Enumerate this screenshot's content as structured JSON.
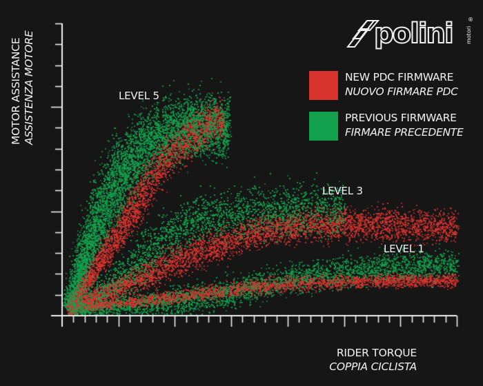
{
  "brand": {
    "logo_text": "polini",
    "logo_subtext": "motori",
    "registered_mark": "®"
  },
  "colors": {
    "background": "#161616",
    "axis": "#f2f2f2",
    "new_firmware": "#d9332e",
    "previous_firmware": "#12a04c"
  },
  "axes": {
    "y_title": "MOTOR ASSISTANCE",
    "y_title_it": "ASSISTENZA MOTORE",
    "x_title": "RIDER TORQUE",
    "x_title_it": "COPPIA CICLISTA"
  },
  "legend": [
    {
      "label": "NEW PDC FIRMWARE",
      "label_it": "NUOVO FIRMARE PDC",
      "color": "#d9332e"
    },
    {
      "label": "PREVIOUS FIRMWARE",
      "label_it": "FIRMARE PRECEDENTE",
      "color": "#12a04c"
    }
  ],
  "annotations": {
    "level5": "LEVEL 5",
    "level3": "LEVEL 3",
    "level1": "LEVEL 1"
  },
  "chart_data": {
    "type": "scatter",
    "title": "",
    "xlabel": "RIDER TORQUE / COPPIA CICLISTA",
    "ylabel": "MOTOR ASSISTANCE / ASSISTENZA MOTORE",
    "units_note": "no numeric tick labels shown; values expressed in tick units",
    "xlim": [
      0,
      35
    ],
    "ylim": [
      0,
      14
    ],
    "x_ticks": {
      "minor_every": 1,
      "major_every": 5,
      "count": 35
    },
    "y_ticks": {
      "minor_every": 1,
      "major_every": 5,
      "count": 14
    },
    "grid": false,
    "legend_position": "upper right",
    "annotations": [
      {
        "text": "LEVEL 5",
        "x": 5.1,
        "y": 10.5
      },
      {
        "text": "LEVEL 3",
        "x": 23,
        "y": 5.8
      },
      {
        "text": "LEVEL 1",
        "x": 28.3,
        "y": 3.0
      }
    ],
    "series": [
      {
        "name": "NEW PDC FIRMWARE",
        "color": "#d9332e",
        "bands": [
          {
            "level": 5,
            "path": [
              [
                0.5,
                0.3
              ],
              [
                5,
                4
              ],
              [
                9,
                7.5
              ],
              [
                13,
                9.3
              ],
              [
                14.3,
                9.5
              ]
            ],
            "width": 0.9,
            "density": 2600
          },
          {
            "level": 3,
            "path": [
              [
                0.5,
                0.3
              ],
              [
                6,
                1.6
              ],
              [
                12,
                3.1
              ],
              [
                17,
                4.0
              ],
              [
                22,
                4.4
              ],
              [
                28,
                4.4
              ],
              [
                35,
                4.3
              ]
            ],
            "width": 0.75,
            "density": 4200
          },
          {
            "level": 1,
            "path": [
              [
                2,
                0.4
              ],
              [
                8,
                0.8
              ],
              [
                14,
                1.2
              ],
              [
                20,
                1.6
              ],
              [
                26,
                1.7
              ],
              [
                35,
                1.7
              ]
            ],
            "width": 0.35,
            "density": 2600
          }
        ]
      },
      {
        "name": "PREVIOUS FIRMWARE",
        "color": "#12a04c",
        "bands": [
          {
            "level": 5,
            "path": [
              [
                0.5,
                0.3
              ],
              [
                3,
                4.5
              ],
              [
                6,
                7.6
              ],
              [
                9,
                8.9
              ],
              [
                12,
                9.2
              ],
              [
                14.8,
                9.0
              ]
            ],
            "width": 1.5,
            "density": 5000
          },
          {
            "level": 3,
            "path": [
              [
                0.5,
                0.3
              ],
              [
                5,
                1.6
              ],
              [
                10,
                4.2
              ],
              [
                14,
                4.9
              ],
              [
                19,
                5.0
              ],
              [
                25,
                5.1
              ]
            ],
            "width": 1.2,
            "density": 4200
          },
          {
            "level": 1,
            "path": [
              [
                1,
                0.3
              ],
              [
                8,
                0.6
              ],
              [
                14,
                1.0
              ],
              [
                20,
                1.8
              ],
              [
                28,
                2.3
              ],
              [
                35,
                2.5
              ]
            ],
            "width": 0.7,
            "density": 2900
          }
        ]
      }
    ]
  }
}
